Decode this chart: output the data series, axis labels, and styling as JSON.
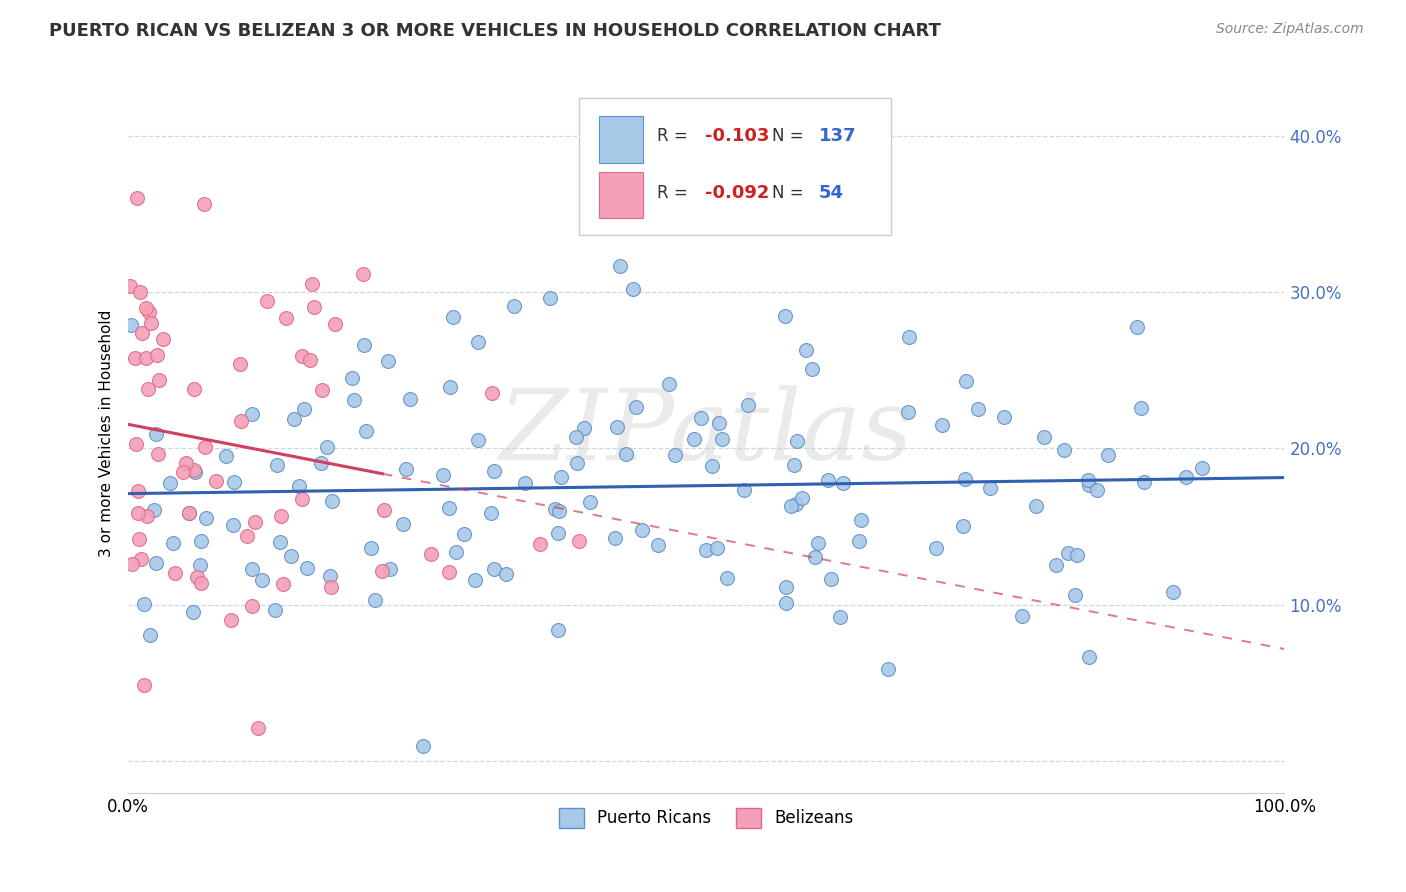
{
  "title": "PUERTO RICAN VS BELIZEAN 3 OR MORE VEHICLES IN HOUSEHOLD CORRELATION CHART",
  "source": "Source: ZipAtlas.com",
  "ylabel": "3 or more Vehicles in Household",
  "yticks": [
    0.0,
    0.1,
    0.2,
    0.3,
    0.4
  ],
  "ytick_labels": [
    "",
    "10.0%",
    "20.0%",
    "30.0%",
    "40.0%"
  ],
  "xmin": 0.0,
  "xmax": 1.0,
  "ymin": -0.02,
  "ymax": 0.44,
  "blue_R": -0.103,
  "blue_N": 137,
  "pink_R": -0.092,
  "pink_N": 54,
  "blue_color": "#a8c8e8",
  "pink_color": "#f4a0b8",
  "blue_edge_color": "#6090c8",
  "pink_edge_color": "#e06888",
  "blue_line_color": "#3060b0",
  "pink_line_color": "#d04060",
  "watermark_text": "ZIPatlas",
  "legend_label_blue": "Puerto Ricans",
  "legend_label_pink": "Belizeans",
  "title_color": "#333333",
  "source_color": "#888888",
  "grid_color": "#c8d8e8",
  "axis_label_color": "#4472c4"
}
